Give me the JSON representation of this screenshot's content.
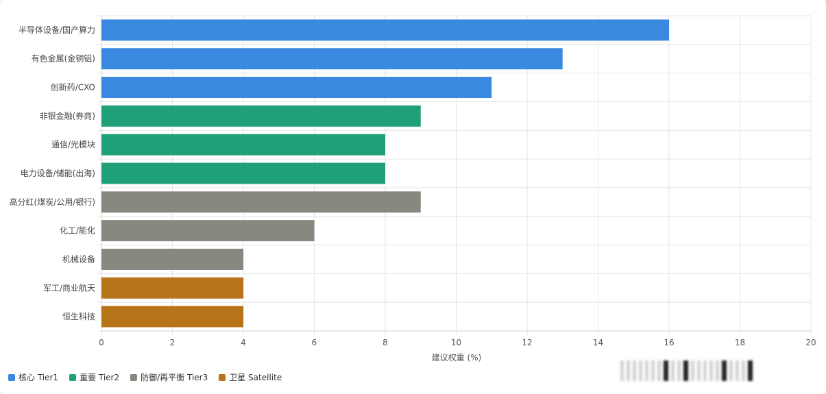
{
  "chart_data": {
    "type": "bar",
    "orientation": "horizontal",
    "categories": [
      "半导体设备/国产算力",
      "有色金属(金铜铝)",
      "创新药/CXO",
      "非银金融(券商)",
      "通信/光模块",
      "电力设备/储能(出海)",
      "高分红(煤炭/公用/银行)",
      "化工/能化",
      "机械设备",
      "军工/商业航天",
      "恒生科技"
    ],
    "values": [
      16,
      13,
      11,
      9,
      8,
      8,
      9,
      6,
      4,
      4,
      4
    ],
    "tiers": [
      "核心 Tier1",
      "核心 Tier1",
      "核心 Tier1",
      "重要 Tier2",
      "重要 Tier2",
      "重要 Tier2",
      "防御/再平衡 Tier3",
      "防御/再平衡 Tier3",
      "防御/再平衡 Tier3",
      "卫星 Satellite",
      "卫星 Satellite"
    ],
    "xlabel": "建议权重 (%)",
    "ylabel": "",
    "xlim": [
      0,
      20
    ],
    "xticks": [
      0,
      2,
      4,
      6,
      8,
      10,
      12,
      14,
      16,
      18,
      20
    ],
    "grid": true,
    "legend_position": "bottom-left",
    "legend": [
      {
        "name": "核心 Tier1",
        "color": "#3889df"
      },
      {
        "name": "重要 Tier2",
        "color": "#1fa078"
      },
      {
        "name": "防御/再平衡 Tier3",
        "color": "#888780"
      },
      {
        "name": "卫星 Satellite",
        "color": "#b87418"
      }
    ]
  }
}
